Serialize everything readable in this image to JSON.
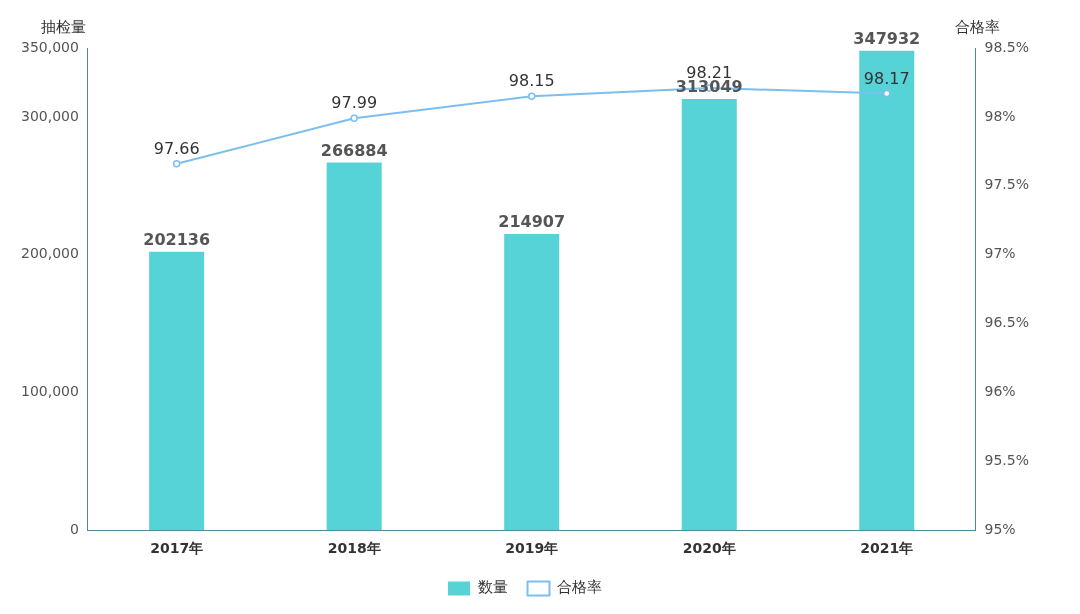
{
  "chart_data": {
    "type": "bar",
    "ylabel": "抽检量",
    "y2label": "合格率",
    "categories": [
      "2017年",
      "2018年",
      "2019年",
      "2020年",
      "2021年"
    ],
    "series": [
      {
        "name": "数量",
        "color": "#56d3d6",
        "values": [
          202136,
          266884,
          214907,
          313049,
          347932
        ]
      },
      {
        "name": "合格率",
        "type": "line",
        "axis": "y2",
        "color": "#7cbfee",
        "marker": "circle",
        "values": [
          97.66,
          97.99,
          98.15,
          98.21,
          98.17
        ]
      }
    ],
    "ylim": [
      0,
      350000
    ],
    "yticks": [
      {
        "value": 0,
        "label": "0"
      },
      {
        "value": 100000,
        "label": "100,000"
      },
      {
        "value": 200000,
        "label": "200,000"
      },
      {
        "value": 300000,
        "label": "300,000"
      },
      {
        "value": 350000,
        "label": "350,000"
      }
    ],
    "y2lim": [
      95,
      98.5
    ],
    "y2ticks": [
      {
        "value": 95,
        "label": "95%"
      },
      {
        "value": 95.5,
        "label": "95.5%"
      },
      {
        "value": 96,
        "label": "96%"
      },
      {
        "value": 96.5,
        "label": "96.5%"
      },
      {
        "value": 97,
        "label": "97%"
      },
      {
        "value": 97.5,
        "label": "97.5%"
      },
      {
        "value": 98,
        "label": "98%"
      },
      {
        "value": 98.5,
        "label": "98.5%"
      }
    ],
    "data_labels": true,
    "grid": false,
    "legend": "bottom"
  }
}
